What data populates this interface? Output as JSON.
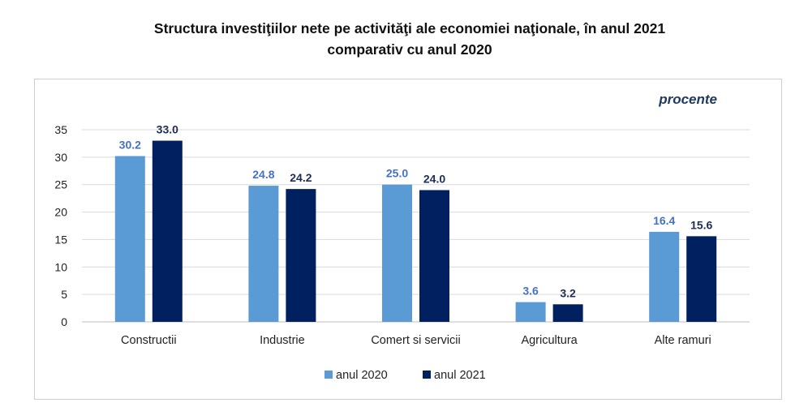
{
  "chart_data": {
    "type": "bar",
    "title_lines": [
      "Structura investiţiilor nete pe activităţi ale economiei naţionale, în anul 2021",
      "comparativ cu anul 2020"
    ],
    "unit_label": "procente",
    "categories": [
      "Constructii",
      "Industrie",
      "Comert si servicii",
      "Agricultura",
      "Alte ramuri"
    ],
    "series": [
      {
        "name": "anul 2020",
        "values": [
          30.2,
          24.8,
          25.0,
          3.6,
          16.4
        ],
        "color": "#5b9bd5",
        "label_color": "#4472c4"
      },
      {
        "name": "anul 2021",
        "values": [
          33.0,
          24.2,
          24.0,
          3.2,
          15.6
        ],
        "color": "#002060",
        "label_color": "#1f2d54"
      }
    ],
    "ylim": [
      0,
      35
    ],
    "yticks": [
      0,
      5,
      10,
      15,
      20,
      25,
      30,
      35
    ],
    "grid": true,
    "legend_position": "bottom"
  }
}
